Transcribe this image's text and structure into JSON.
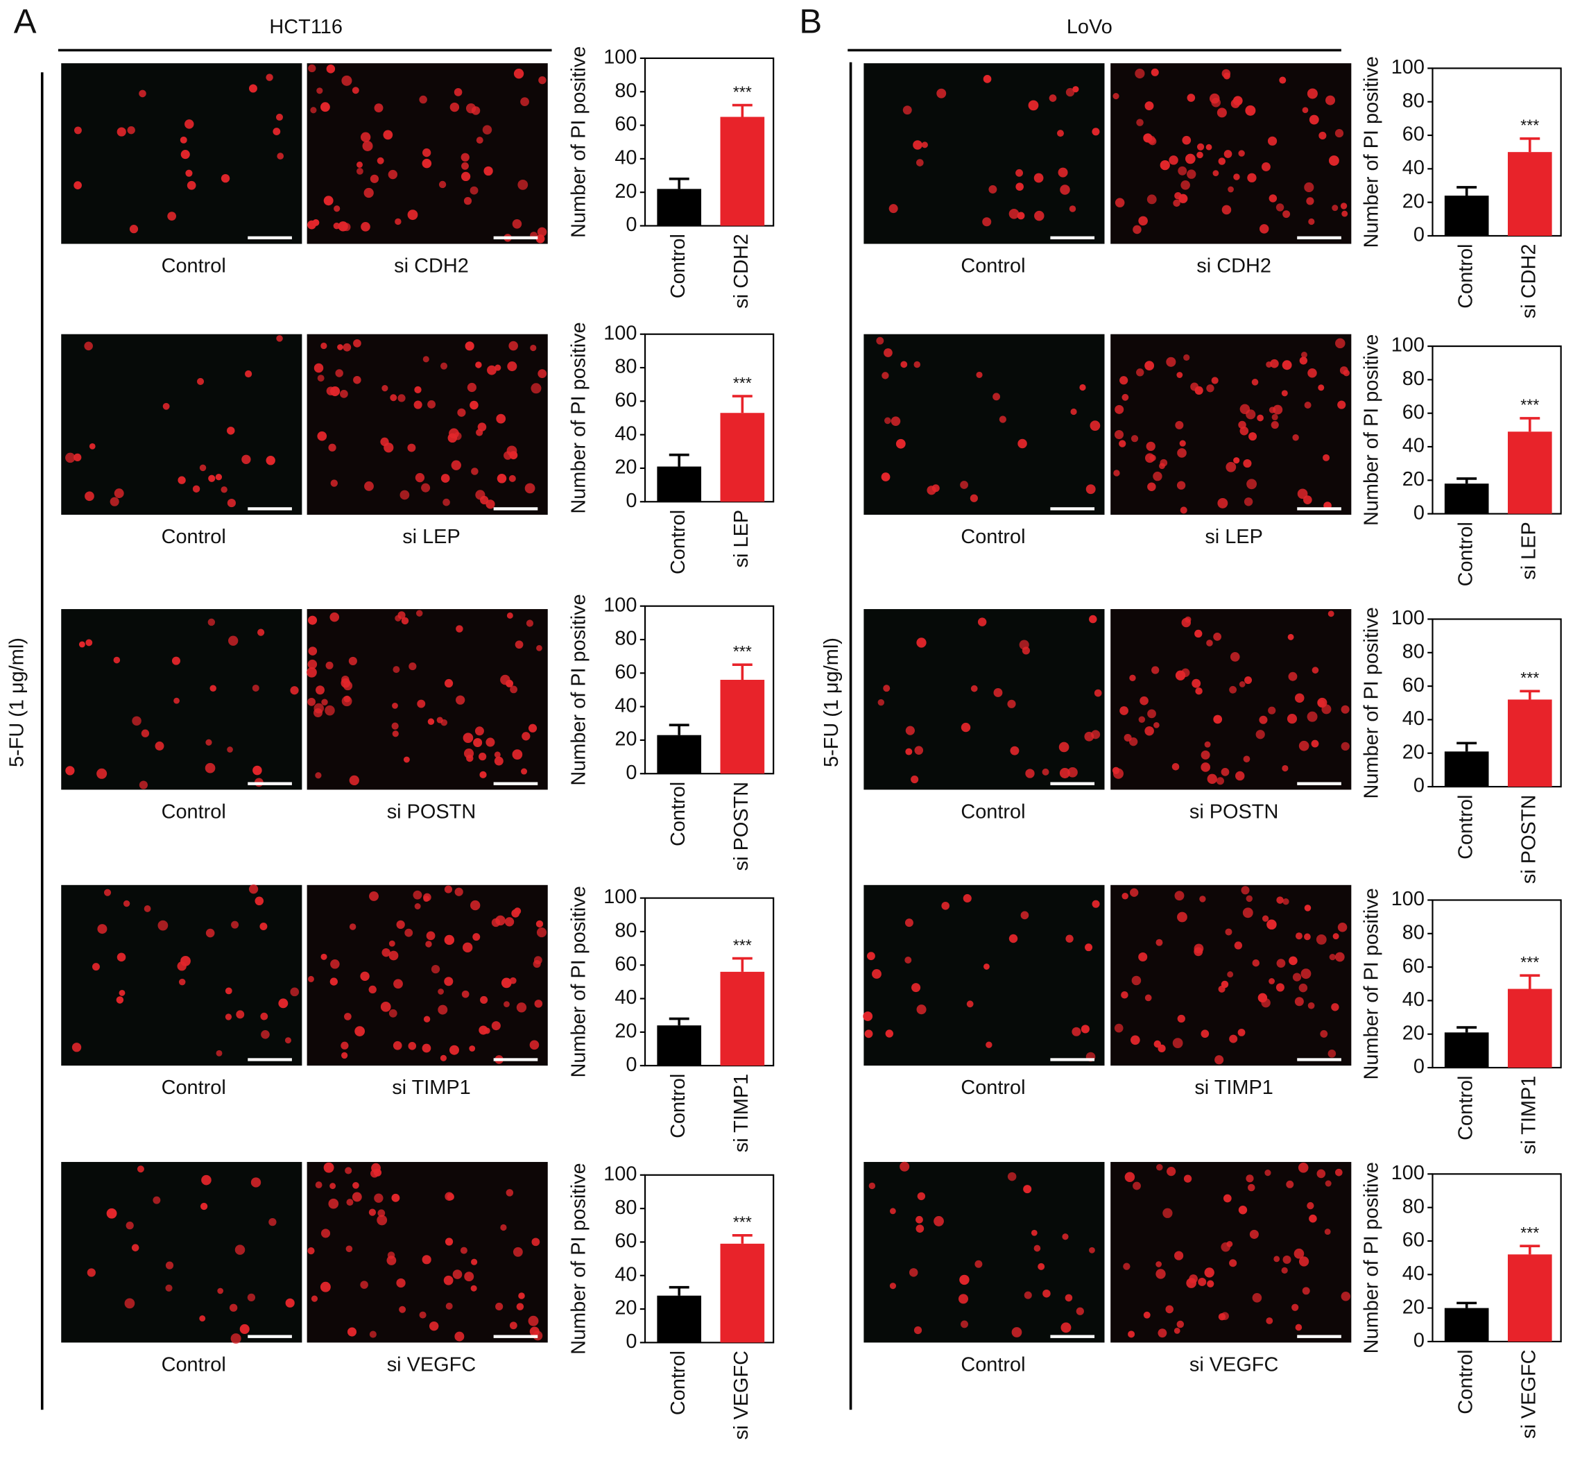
{
  "panels": [
    {
      "label": "A",
      "cell_line": "HCT116",
      "treatment": "5-FU (1 μg/ml)",
      "rows": [
        [
          "Control",
          "si CDH2"
        ],
        [
          "Control",
          "si LEP"
        ],
        [
          "Control",
          "si POSTN"
        ],
        [
          "Control",
          "si TIMP1"
        ],
        [
          "Control",
          "si VEGFC"
        ]
      ]
    },
    {
      "label": "B",
      "cell_line": "LoVo",
      "treatment": "5-FU (1 μg/ml)",
      "rows": [
        [
          "Control",
          "si CDH2"
        ],
        [
          "Control",
          "si LEP"
        ],
        [
          "Control",
          "si POSTN"
        ],
        [
          "Control",
          "si TIMP1"
        ],
        [
          "Control",
          "si VEGFC"
        ]
      ]
    }
  ],
  "chart_data": [
    {
      "type": "bar",
      "ylabel": "Number of PI positive",
      "categories": [
        "Control",
        "si CDH2"
      ],
      "values": [
        22,
        65
      ],
      "errors": [
        6,
        7
      ],
      "colors": [
        "#000000",
        "#e8232a"
      ],
      "annotation": "***",
      "ylim": [
        0,
        100
      ],
      "yticks": [
        0,
        20,
        40,
        60,
        80,
        100
      ]
    },
    {
      "type": "bar",
      "ylabel": "Number of PI positive",
      "categories": [
        "Control",
        "si LEP"
      ],
      "values": [
        21,
        53
      ],
      "errors": [
        7,
        10
      ],
      "colors": [
        "#000000",
        "#e8232a"
      ],
      "annotation": "***",
      "ylim": [
        0,
        100
      ],
      "yticks": [
        0,
        20,
        40,
        60,
        80,
        100
      ]
    },
    {
      "type": "bar",
      "ylabel": "Number of PI positive",
      "categories": [
        "Control",
        "si POSTN"
      ],
      "values": [
        23,
        56
      ],
      "errors": [
        6,
        9
      ],
      "colors": [
        "#000000",
        "#e8232a"
      ],
      "annotation": "***",
      "ylim": [
        0,
        100
      ],
      "yticks": [
        0,
        20,
        40,
        60,
        80,
        100
      ]
    },
    {
      "type": "bar",
      "ylabel": "Number of PI positive",
      "categories": [
        "Control",
        "si TIMP1"
      ],
      "values": [
        24,
        56
      ],
      "errors": [
        4,
        8
      ],
      "colors": [
        "#000000",
        "#e8232a"
      ],
      "annotation": "***",
      "ylim": [
        0,
        100
      ],
      "yticks": [
        0,
        20,
        40,
        60,
        80,
        100
      ]
    },
    {
      "type": "bar",
      "ylabel": "Number of PI positive",
      "categories": [
        "Control",
        "si VEGFC"
      ],
      "values": [
        28,
        59
      ],
      "errors": [
        5,
        5
      ],
      "colors": [
        "#000000",
        "#e8232a"
      ],
      "annotation": "***",
      "ylim": [
        0,
        100
      ],
      "yticks": [
        0,
        20,
        40,
        60,
        80,
        100
      ]
    },
    {
      "type": "bar",
      "ylabel": "Number of PI positive",
      "categories": [
        "Control",
        "si CDH2"
      ],
      "values": [
        24,
        50
      ],
      "errors": [
        5,
        8
      ],
      "colors": [
        "#000000",
        "#e8232a"
      ],
      "annotation": "***",
      "ylim": [
        0,
        100
      ],
      "yticks": [
        0,
        20,
        40,
        60,
        80,
        100
      ]
    },
    {
      "type": "bar",
      "ylabel": "Number of PI positive",
      "categories": [
        "Control",
        "si LEP"
      ],
      "values": [
        18,
        49
      ],
      "errors": [
        3,
        8
      ],
      "colors": [
        "#000000",
        "#e8232a"
      ],
      "annotation": "***",
      "ylim": [
        0,
        100
      ],
      "yticks": [
        0,
        20,
        40,
        60,
        80,
        100
      ]
    },
    {
      "type": "bar",
      "ylabel": "Number of PI positive",
      "categories": [
        "Control",
        "si POSTN"
      ],
      "values": [
        21,
        52
      ],
      "errors": [
        5,
        5
      ],
      "colors": [
        "#000000",
        "#e8232a"
      ],
      "annotation": "***",
      "ylim": [
        0,
        100
      ],
      "yticks": [
        0,
        20,
        40,
        60,
        80,
        100
      ]
    },
    {
      "type": "bar",
      "ylabel": "Number of PI positive",
      "categories": [
        "Control",
        "si TIMP1"
      ],
      "values": [
        21,
        47
      ],
      "errors": [
        3,
        8
      ],
      "colors": [
        "#000000",
        "#e8232a"
      ],
      "annotation": "***",
      "ylim": [
        0,
        100
      ],
      "yticks": [
        0,
        20,
        40,
        60,
        80,
        100
      ]
    },
    {
      "type": "bar",
      "ylabel": "Number of PI positive",
      "categories": [
        "Control",
        "si VEGFC"
      ],
      "values": [
        20,
        52
      ],
      "errors": [
        3,
        5
      ],
      "colors": [
        "#000000",
        "#e8232a"
      ],
      "annotation": "***",
      "ylim": [
        0,
        100
      ],
      "yticks": [
        0,
        20,
        40,
        60,
        80,
        100
      ]
    }
  ]
}
